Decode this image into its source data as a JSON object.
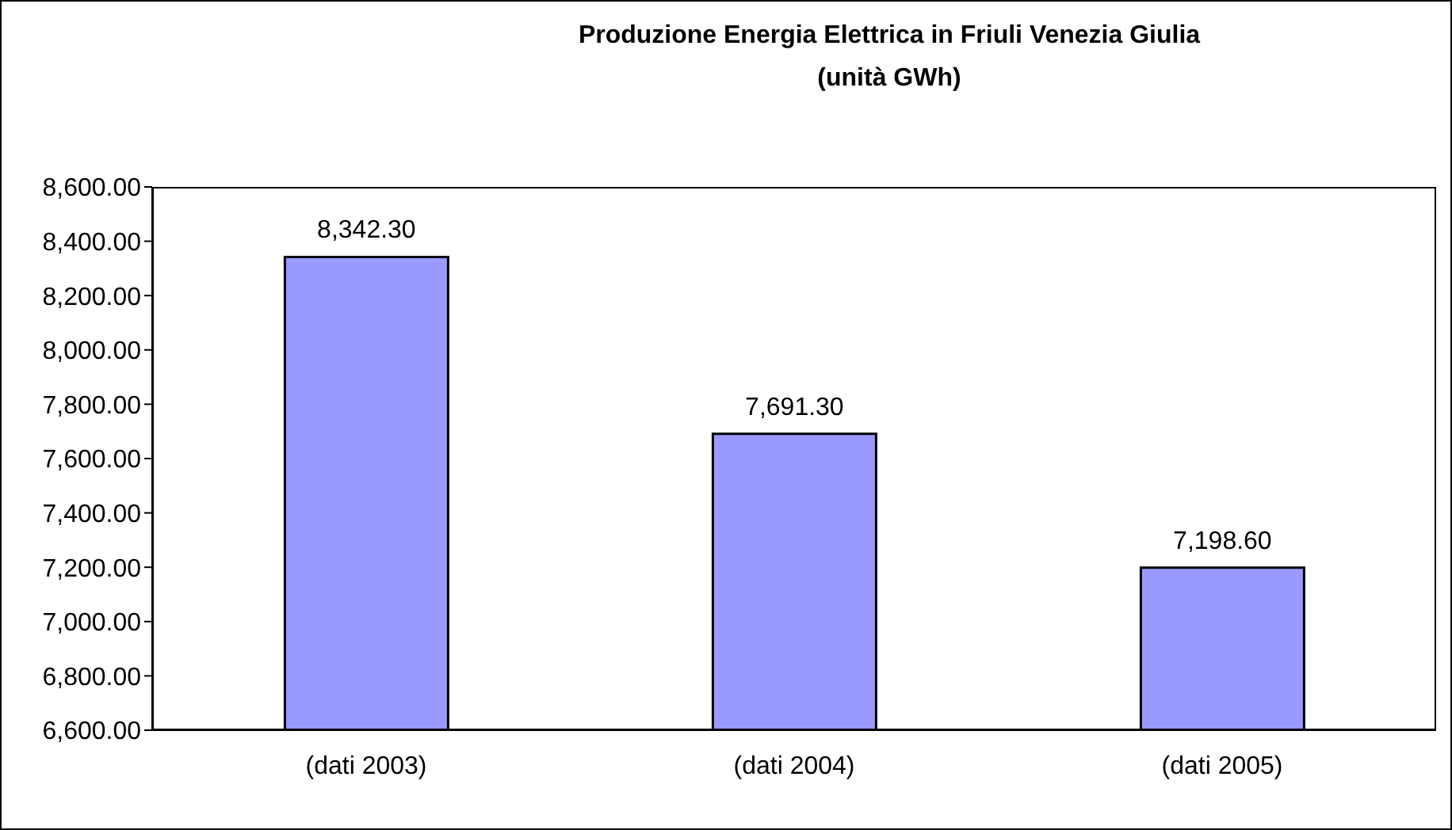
{
  "chart_data": {
    "type": "bar",
    "title": "Produzione Energia Elettrica in Friuli Venezia Giulia",
    "subtitle": "(unità GWh)",
    "categories": [
      "(dati 2003)",
      "(dati 2004)",
      "(dati 2005)"
    ],
    "values": [
      8342.3,
      7691.3,
      7198.6
    ],
    "value_labels": [
      "8,342.30",
      "7,691.30",
      "7,198.60"
    ],
    "color": "#9999ff",
    "ylim": [
      6600,
      8600
    ],
    "yticks": [
      {
        "value": 6600,
        "label": "6,600.00"
      },
      {
        "value": 6800,
        "label": "6,800.00"
      },
      {
        "value": 7000,
        "label": "7,000.00"
      },
      {
        "value": 7200,
        "label": "7,200.00"
      },
      {
        "value": 7400,
        "label": "7,400.00"
      },
      {
        "value": 7600,
        "label": "7,600.00"
      },
      {
        "value": 7800,
        "label": "7,800.00"
      },
      {
        "value": 8000,
        "label": "8,000.00"
      },
      {
        "value": 8200,
        "label": "8,200.00"
      },
      {
        "value": 8400,
        "label": "8,400.00"
      },
      {
        "value": 8600,
        "label": "8,600.00"
      }
    ],
    "grid": false,
    "legend": false
  }
}
